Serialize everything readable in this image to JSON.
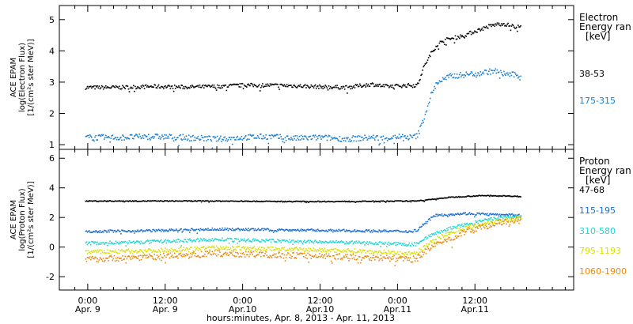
{
  "chart_data": [
    {
      "type": "scatter",
      "ylabel": [
        "ACE EPAM",
        "log(Electron Flux)",
        "[1/(cm²s ster MeV)]"
      ],
      "ylim": [
        0.85,
        5.45
      ],
      "yticks": [
        1,
        2,
        3,
        4,
        5
      ],
      "legend_title": [
        "Electron",
        "Energy ran",
        "[keV]"
      ],
      "legend_placement": "right",
      "series": [
        {
          "name": "38-53",
          "color": "#000000",
          "x": [
            -0.4,
            0,
            5,
            10,
            15,
            20,
            24,
            28,
            32,
            36,
            40,
            44,
            46,
            48,
            50,
            51,
            52,
            53,
            54,
            55,
            56,
            58,
            60,
            62,
            63,
            64,
            66,
            67
          ],
          "y": [
            2.85,
            2.85,
            2.85,
            2.88,
            2.86,
            2.88,
            2.92,
            2.92,
            2.9,
            2.87,
            2.85,
            2.95,
            2.88,
            2.9,
            2.92,
            2.92,
            3.5,
            3.9,
            4.2,
            4.35,
            4.4,
            4.5,
            4.65,
            4.8,
            4.85,
            4.9,
            4.8,
            4.78
          ]
        },
        {
          "name": "175-315",
          "color": "#1a7fcf",
          "x": [
            -0.4,
            0,
            5,
            10,
            15,
            20,
            24,
            28,
            32,
            36,
            40,
            44,
            46,
            48,
            50,
            51,
            52,
            53,
            54,
            55,
            56,
            58,
            60,
            62,
            63,
            64,
            66,
            67
          ],
          "y": [
            1.25,
            1.25,
            1.25,
            1.28,
            1.25,
            1.2,
            1.25,
            1.28,
            1.22,
            1.25,
            1.2,
            1.25,
            1.22,
            1.28,
            1.25,
            1.3,
            1.85,
            2.55,
            3.0,
            3.1,
            3.2,
            3.25,
            3.3,
            3.35,
            3.38,
            3.3,
            3.25,
            3.2
          ]
        }
      ]
    },
    {
      "type": "scatter",
      "ylabel": [
        "ACE EPAM",
        "log(Proton Flux)",
        "[1/(cm²s ster MeV)]"
      ],
      "ylim": [
        -2.9,
        6.6
      ],
      "yticks": [
        -2,
        0,
        2,
        4,
        6
      ],
      "legend_title": [
        "Proton",
        "Energy ran",
        "[keV]"
      ],
      "legend_placement": "right",
      "xlabel": "hours:minutes, Apr.  8, 2013 - Apr. 11, 2013",
      "xlim": [
        -4.4,
        75.3
      ],
      "xticks": [
        0,
        12,
        24,
        36,
        48,
        60
      ],
      "xtick_labels": [
        [
          "0:00",
          "Apr. 9"
        ],
        [
          "12:00",
          "Apr. 9"
        ],
        [
          "0:00",
          "Apr.10"
        ],
        [
          "12:00",
          "Apr.10"
        ],
        [
          "0:00",
          "Apr.11"
        ],
        [
          "12:00",
          "Apr.11"
        ]
      ],
      "series": [
        {
          "name": "47-68",
          "color": "#000000",
          "x": [
            -0.4,
            10,
            20,
            30,
            40,
            50,
            52,
            54,
            56,
            58,
            60,
            62,
            64,
            66,
            67
          ],
          "y": [
            3.15,
            3.15,
            3.15,
            3.12,
            3.12,
            3.15,
            3.2,
            3.3,
            3.4,
            3.45,
            3.5,
            3.52,
            3.5,
            3.48,
            3.45
          ]
        },
        {
          "name": "115-195",
          "color": "#1a6fd0",
          "x": [
            -0.4,
            10,
            20,
            30,
            40,
            50,
            51,
            52,
            53,
            54,
            56,
            58,
            60,
            62,
            64,
            66,
            67
          ],
          "y": [
            1.1,
            1.15,
            1.25,
            1.2,
            1.15,
            1.1,
            1.2,
            1.6,
            2.0,
            2.2,
            2.25,
            2.3,
            2.3,
            2.25,
            2.2,
            2.2,
            2.2
          ]
        },
        {
          "name": "310-580",
          "color": "#1fd6d0",
          "x": [
            -0.4,
            10,
            20,
            30,
            40,
            46,
            50,
            51,
            52,
            54,
            56,
            58,
            60,
            62,
            64,
            66,
            67
          ],
          "y": [
            0.3,
            0.4,
            0.55,
            0.45,
            0.35,
            0.3,
            0.2,
            0.3,
            0.6,
            1.0,
            1.3,
            1.5,
            1.7,
            1.9,
            2.0,
            2.1,
            2.1
          ]
        },
        {
          "name": "795-1193",
          "color": "#d8e000",
          "x": [
            -0.4,
            10,
            20,
            30,
            40,
            46,
            50,
            51,
            52,
            54,
            56,
            58,
            60,
            62,
            64,
            66,
            67
          ],
          "y": [
            -0.3,
            -0.2,
            0.0,
            -0.1,
            -0.2,
            -0.3,
            -0.4,
            -0.3,
            0.0,
            0.6,
            1.0,
            1.3,
            1.5,
            1.7,
            1.85,
            1.95,
            2.0
          ]
        },
        {
          "name": "1060-1900",
          "color": "#e88a10",
          "x": [
            -0.4,
            10,
            20,
            30,
            40,
            46,
            50,
            51,
            52,
            54,
            56,
            58,
            60,
            62,
            64,
            66,
            67
          ],
          "y": [
            -0.8,
            -0.6,
            -0.4,
            -0.5,
            -0.6,
            -0.7,
            -0.8,
            -0.7,
            -0.3,
            0.2,
            0.6,
            1.0,
            1.3,
            1.5,
            1.7,
            1.8,
            1.85
          ]
        }
      ]
    }
  ]
}
